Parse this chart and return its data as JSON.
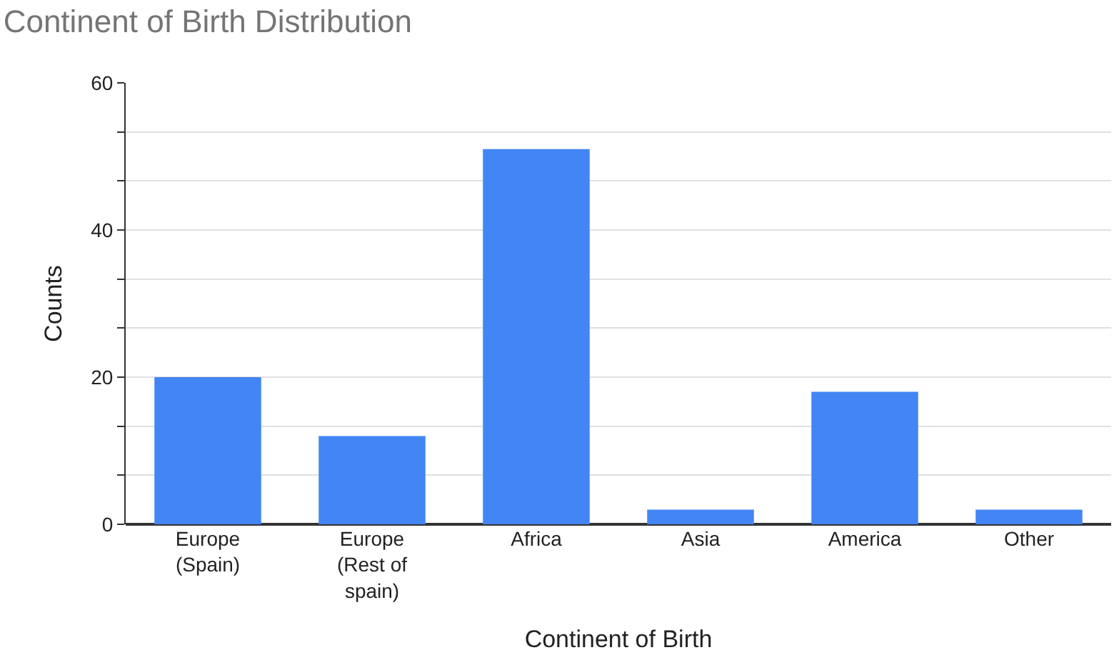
{
  "chart_data": {
    "type": "bar",
    "title": "Continent of Birth Distribution",
    "xlabel": "Continent of Birth",
    "ylabel": "Counts",
    "categories": [
      "Europe (Spain)",
      "Europe (Rest of spain)",
      "Africa",
      "Asia",
      "America",
      "Other"
    ],
    "values": [
      20,
      12,
      51,
      2,
      18,
      2
    ],
    "color": "#4285f4",
    "ylim": [
      0,
      60
    ],
    "yticks": [
      0,
      {
        "value": 6.667,
        "label": null
      },
      {
        "value": 13.333,
        "label": null
      },
      20,
      {
        "value": 26.667,
        "label": null
      },
      {
        "value": 33.333,
        "label": null
      },
      40,
      {
        "value": 46.667,
        "label": null
      },
      {
        "value": 53.333,
        "label": null
      },
      60
    ],
    "grid": "y",
    "legend": false
  }
}
